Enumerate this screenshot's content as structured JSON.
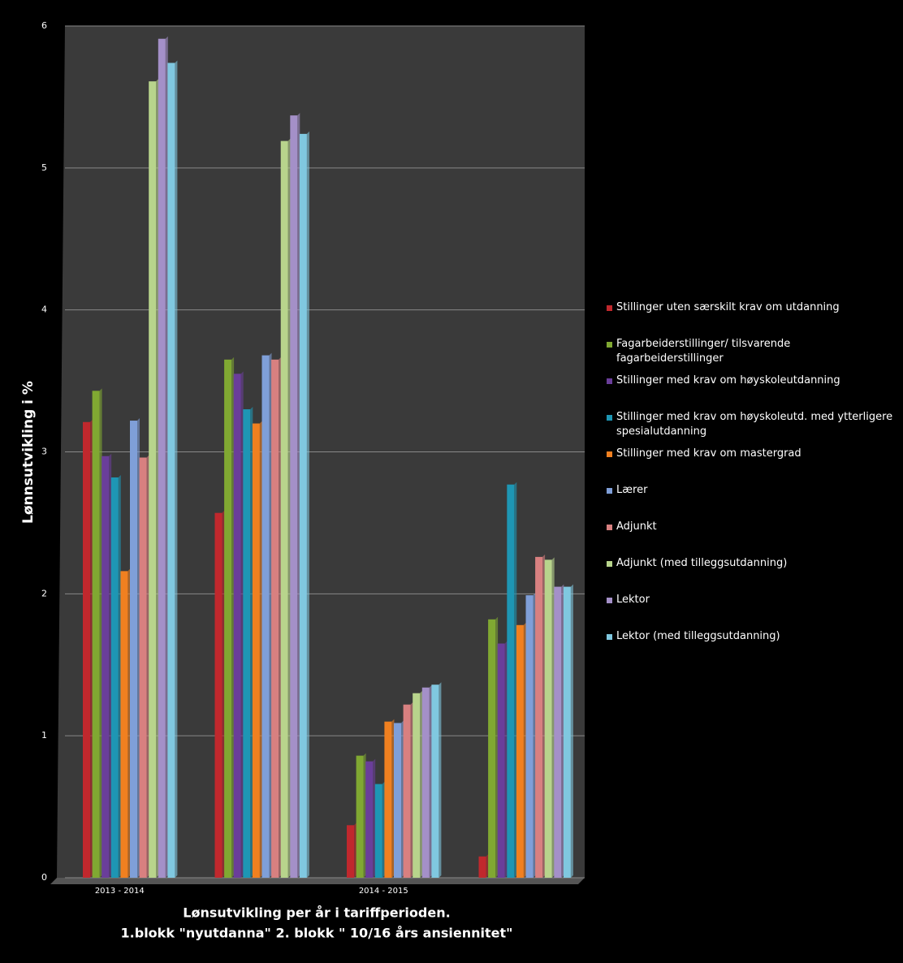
{
  "chart_data": {
    "type": "bar",
    "y_label": "Lønnsutvikling i %",
    "x_label": [
      "Lønsutvikling per år i tariffperioden.",
      "1.blokk \"nyutdanna\" 2. blokk \" 10/16 års ansiennitet\""
    ],
    "categories": [
      "2013 - 2014",
      null,
      "2014 - 2015",
      null
    ],
    "ylim": [
      0,
      6
    ],
    "yticks": [
      0,
      1,
      2,
      3,
      4,
      5,
      6
    ],
    "grid": true,
    "series": [
      {
        "name": "Stillinger uten særskilt krav om utdanning",
        "color": "#c0282d",
        "values": [
          3.21,
          2.57,
          0.37,
          0.15
        ]
      },
      {
        "name": "Fagarbeiderstillinger/ tilsvarende fagarbeiderstillinger",
        "color": "#80a832",
        "values": [
          3.43,
          3.65,
          0.86,
          1.82
        ]
      },
      {
        "name": "Stillinger med krav om høyskoleutdanning",
        "color": "#6a3e9a",
        "values": [
          2.97,
          3.55,
          0.82,
          1.65
        ]
      },
      {
        "name": "Stillinger med krav om høyskoleutd. med ytterligere spesialutdanning",
        "color": "#1e96b4",
        "values": [
          2.82,
          3.3,
          0.66,
          2.77
        ]
      },
      {
        "name": "Stillinger med krav om mastergrad",
        "color": "#f08020",
        "values": [
          2.16,
          3.2,
          1.1,
          1.78
        ]
      },
      {
        "name": "Lærer",
        "color": "#7f9fd8",
        "values": [
          3.22,
          3.68,
          1.09,
          1.99
        ]
      },
      {
        "name": "Adjunkt",
        "color": "#d88080",
        "values": [
          2.96,
          3.65,
          1.22,
          2.26
        ]
      },
      {
        "name": "Adjunkt (med tilleggsutdanning)",
        "color": "#b8d48c",
        "values": [
          5.61,
          5.19,
          1.3,
          2.24
        ]
      },
      {
        "name": "Lektor",
        "color": "#a490c8",
        "values": [
          5.91,
          5.37,
          1.34,
          2.05
        ]
      },
      {
        "name": "Lektor (med tilleggsutdanning)",
        "color": "#80c8e0",
        "values": [
          5.74,
          5.24,
          1.36,
          2.05
        ]
      }
    ]
  }
}
